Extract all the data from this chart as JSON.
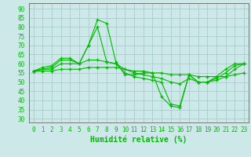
{
  "xlabel": "Humidité relative (%)",
  "bg_color": "#cce8e8",
  "grid_color": "#aacccc",
  "line_color": "#00bb00",
  "xlim": [
    -0.5,
    23.5
  ],
  "ylim": [
    28,
    93
  ],
  "yticks": [
    30,
    35,
    40,
    45,
    50,
    55,
    60,
    65,
    70,
    75,
    80,
    85,
    90
  ],
  "xticks": [
    0,
    1,
    2,
    3,
    4,
    5,
    6,
    7,
    8,
    9,
    10,
    11,
    12,
    13,
    14,
    15,
    16,
    17,
    18,
    19,
    20,
    21,
    22,
    23
  ],
  "series": [
    [
      56,
      58,
      59,
      63,
      63,
      60,
      70,
      84,
      82,
      61,
      54,
      54,
      55,
      55,
      42,
      37,
      36,
      54,
      50,
      50,
      53,
      57,
      60,
      60
    ],
    [
      56,
      57,
      58,
      62,
      62,
      60,
      70,
      80,
      61,
      60,
      55,
      53,
      52,
      51,
      50,
      38,
      37,
      54,
      50,
      50,
      52,
      55,
      59,
      60
    ],
    [
      56,
      57,
      57,
      60,
      60,
      60,
      62,
      62,
      61,
      60,
      57,
      55,
      54,
      53,
      52,
      50,
      49,
      52,
      50,
      50,
      51,
      53,
      57,
      60
    ],
    [
      56,
      56,
      56,
      57,
      57,
      57,
      58,
      58,
      58,
      58,
      57,
      56,
      56,
      55,
      55,
      54,
      54,
      54,
      53,
      53,
      53,
      53,
      54,
      55
    ]
  ],
  "xlabel_fontsize": 7,
  "tick_fontsize": 5.5
}
